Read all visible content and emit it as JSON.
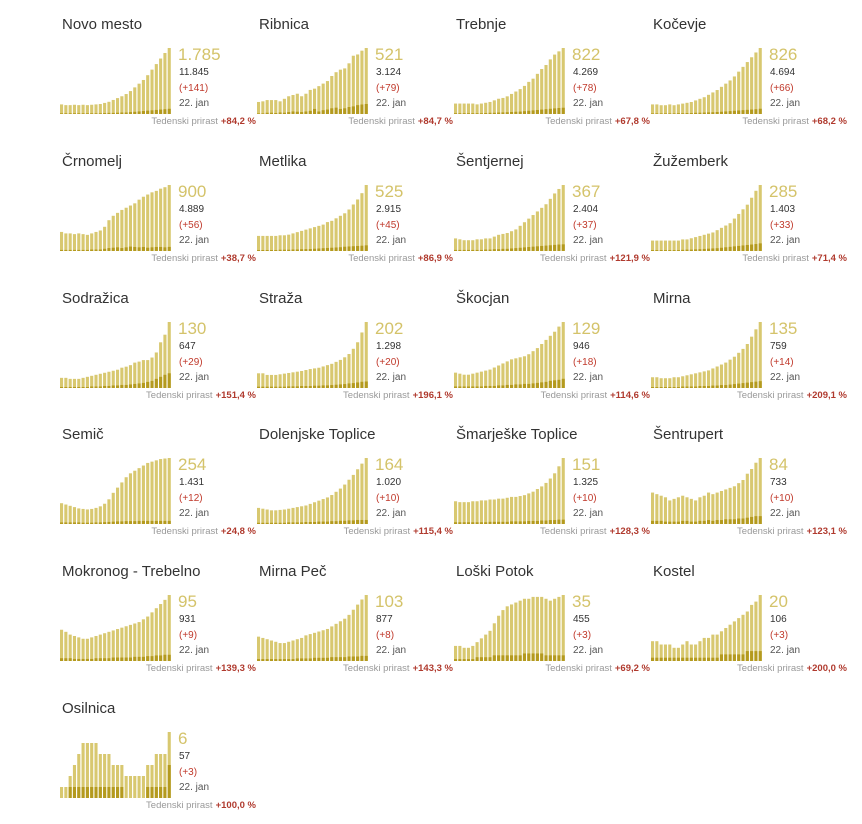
{
  "colors": {
    "bar_light": "#d8c870",
    "bar_dark": "#b49a1e",
    "big_number": "#d4c36a",
    "growth_value": "#b03a2e",
    "delta": "#c0392b"
  },
  "growth_label": "Tedenski prirast",
  "chart_data": [
    {
      "type": "bar",
      "title": "Novo mesto",
      "current": "1.785",
      "total": "11.845",
      "delta": "(+141)",
      "date": "22. jan",
      "growth": "+84,2 %",
      "values": [
        260,
        240,
        240,
        250,
        240,
        250,
        240,
        250,
        260,
        270,
        300,
        330,
        380,
        430,
        480,
        540,
        620,
        720,
        820,
        920,
        1050,
        1200,
        1350,
        1500,
        1650,
        1785
      ],
      "dark": [
        20,
        20,
        20,
        20,
        20,
        20,
        20,
        20,
        20,
        20,
        25,
        30,
        30,
        35,
        40,
        40,
        50,
        60,
        70,
        80,
        90,
        100,
        110,
        120,
        130,
        141
      ]
    },
    {
      "type": "bar",
      "title": "Ribnica",
      "current": "521",
      "total": "3.124",
      "delta": "(+79)",
      "date": "22. jan",
      "growth": "+84,7 %",
      "values": [
        95,
        100,
        110,
        110,
        110,
        100,
        120,
        140,
        150,
        160,
        140,
        160,
        190,
        200,
        220,
        240,
        260,
        300,
        330,
        350,
        360,
        400,
        460,
        470,
        500,
        521
      ],
      "dark": [
        5,
        5,
        10,
        10,
        8,
        12,
        10,
        15,
        20,
        18,
        15,
        20,
        25,
        40,
        20,
        30,
        35,
        45,
        50,
        40,
        45,
        55,
        60,
        70,
        75,
        79
      ]
    },
    {
      "type": "bar",
      "title": "Trebnje",
      "current": "822",
      "total": "4.269",
      "delta": "(+78)",
      "date": "22. jan",
      "growth": "+67,8 %",
      "values": [
        130,
        130,
        130,
        130,
        130,
        120,
        130,
        140,
        150,
        170,
        190,
        200,
        220,
        250,
        280,
        310,
        350,
        400,
        440,
        500,
        560,
        610,
        680,
        740,
        780,
        822
      ],
      "dark": [
        10,
        10,
        10,
        10,
        10,
        10,
        10,
        12,
        15,
        15,
        18,
        20,
        22,
        25,
        28,
        30,
        35,
        40,
        45,
        50,
        55,
        60,
        65,
        70,
        75,
        78
      ]
    },
    {
      "type": "bar",
      "title": "Kočevje",
      "current": "826",
      "total": "4.694",
      "delta": "(+66)",
      "date": "22. jan",
      "growth": "+68,2 %",
      "values": [
        120,
        120,
        110,
        110,
        120,
        110,
        120,
        130,
        140,
        150,
        170,
        190,
        210,
        240,
        270,
        300,
        340,
        380,
        420,
        470,
        530,
        590,
        650,
        710,
        770,
        826
      ],
      "dark": [
        8,
        8,
        8,
        8,
        8,
        8,
        10,
        10,
        12,
        12,
        15,
        16,
        18,
        20,
        22,
        25,
        28,
        32,
        36,
        40,
        44,
        48,
        52,
        56,
        60,
        66
      ]
    },
    {
      "type": "bar",
      "title": "Črnomelj",
      "current": "900",
      "total": "4.889",
      "delta": "(+56)",
      "date": "22. jan",
      "growth": "+38,7 %",
      "values": [
        260,
        240,
        240,
        230,
        240,
        230,
        220,
        240,
        260,
        280,
        330,
        420,
        480,
        520,
        560,
        590,
        620,
        650,
        700,
        740,
        770,
        800,
        820,
        850,
        870,
        900
      ],
      "dark": [
        15,
        15,
        15,
        15,
        15,
        15,
        15,
        20,
        20,
        20,
        30,
        40,
        45,
        50,
        40,
        50,
        60,
        55,
        50,
        55,
        45,
        50,
        55,
        55,
        50,
        56
      ]
    },
    {
      "type": "bar",
      "title": "Metlika",
      "current": "525",
      "total": "2.915",
      "delta": "(+45)",
      "date": "22. jan",
      "growth": "+86,9 %",
      "values": [
        120,
        120,
        120,
        120,
        120,
        125,
        125,
        130,
        140,
        150,
        160,
        170,
        180,
        190,
        200,
        210,
        230,
        240,
        260,
        280,
        300,
        330,
        370,
        410,
        460,
        525
      ],
      "dark": [
        8,
        8,
        8,
        8,
        8,
        10,
        10,
        10,
        12,
        12,
        14,
        15,
        16,
        18,
        20,
        22,
        24,
        26,
        28,
        30,
        34,
        36,
        38,
        40,
        42,
        45
      ]
    },
    {
      "type": "bar",
      "title": "Šentjernej",
      "current": "367",
      "total": "2.404",
      "delta": "(+37)",
      "date": "22. jan",
      "growth": "+121,9 %",
      "values": [
        70,
        65,
        60,
        60,
        60,
        65,
        65,
        70,
        70,
        80,
        90,
        95,
        100,
        110,
        120,
        140,
        160,
        180,
        200,
        220,
        240,
        260,
        290,
        320,
        345,
        367
      ],
      "dark": [
        6,
        6,
        6,
        6,
        6,
        6,
        6,
        8,
        8,
        10,
        10,
        12,
        12,
        14,
        16,
        18,
        20,
        22,
        24,
        26,
        28,
        30,
        32,
        34,
        36,
        37
      ]
    },
    {
      "type": "bar",
      "title": "Žužemberk",
      "current": "285",
      "total": "1.403",
      "delta": "(+33)",
      "date": "22. jan",
      "growth": "+71,4 %",
      "values": [
        45,
        45,
        45,
        45,
        45,
        45,
        45,
        50,
        50,
        55,
        60,
        65,
        70,
        75,
        80,
        90,
        100,
        110,
        120,
        140,
        160,
        180,
        200,
        230,
        260,
        285
      ],
      "dark": [
        4,
        4,
        4,
        4,
        4,
        4,
        4,
        5,
        6,
        6,
        7,
        8,
        9,
        10,
        11,
        12,
        14,
        16,
        18,
        20,
        22,
        24,
        26,
        28,
        30,
        33
      ]
    },
    {
      "type": "bar",
      "title": "Sodražica",
      "current": "130",
      "total": "647",
      "delta": "(+29)",
      "date": "22. jan",
      "growth": "+151,4 %",
      "values": [
        20,
        20,
        18,
        18,
        18,
        20,
        22,
        24,
        26,
        28,
        30,
        32,
        34,
        36,
        40,
        42,
        45,
        50,
        52,
        55,
        55,
        60,
        70,
        90,
        105,
        130
      ],
      "dark": [
        2,
        2,
        2,
        2,
        2,
        2,
        2,
        3,
        3,
        3,
        4,
        4,
        5,
        5,
        6,
        6,
        7,
        8,
        9,
        10,
        12,
        14,
        18,
        22,
        26,
        29
      ]
    },
    {
      "type": "bar",
      "title": "Straža",
      "current": "202",
      "total": "1.298",
      "delta": "(+20)",
      "date": "22. jan",
      "growth": "+196,1 %",
      "values": [
        45,
        45,
        40,
        40,
        40,
        42,
        44,
        46,
        48,
        50,
        52,
        55,
        58,
        60,
        62,
        66,
        70,
        74,
        80,
        86,
        94,
        104,
        120,
        140,
        170,
        202
      ],
      "dark": [
        4,
        4,
        4,
        4,
        4,
        4,
        4,
        5,
        5,
        5,
        6,
        6,
        6,
        7,
        7,
        8,
        8,
        9,
        10,
        11,
        12,
        14,
        15,
        17,
        19,
        20
      ]
    },
    {
      "type": "bar",
      "title": "Škocjan",
      "current": "129",
      "total": "946",
      "delta": "(+18)",
      "date": "22. jan",
      "growth": "+114,6 %",
      "values": [
        30,
        28,
        26,
        26,
        28,
        30,
        32,
        34,
        36,
        40,
        44,
        48,
        52,
        56,
        58,
        60,
        62,
        66,
        72,
        78,
        86,
        94,
        102,
        110,
        120,
        129
      ],
      "dark": [
        3,
        3,
        3,
        3,
        3,
        3,
        3,
        4,
        4,
        4,
        5,
        5,
        6,
        6,
        7,
        7,
        8,
        8,
        9,
        10,
        11,
        12,
        14,
        15,
        16,
        18
      ]
    },
    {
      "type": "bar",
      "title": "Mirna",
      "current": "135",
      "total": "759",
      "delta": "(+14)",
      "date": "22. jan",
      "growth": "+209,1 %",
      "values": [
        22,
        22,
        20,
        20,
        20,
        22,
        22,
        24,
        26,
        28,
        30,
        32,
        34,
        36,
        40,
        44,
        48,
        52,
        58,
        64,
        72,
        80,
        90,
        105,
        120,
        135
      ],
      "dark": [
        2,
        2,
        2,
        2,
        2,
        2,
        2,
        3,
        3,
        3,
        3,
        4,
        4,
        4,
        5,
        5,
        6,
        6,
        7,
        8,
        9,
        10,
        11,
        12,
        13,
        14
      ]
    },
    {
      "type": "bar",
      "title": "Semič",
      "current": "254",
      "total": "1.431",
      "delta": "(+12)",
      "date": "22. jan",
      "growth": "+24,8 %",
      "values": [
        80,
        75,
        70,
        65,
        60,
        58,
        56,
        58,
        62,
        68,
        78,
        95,
        120,
        140,
        160,
        180,
        195,
        205,
        215,
        225,
        235,
        240,
        245,
        250,
        252,
        254
      ],
      "dark": [
        6,
        6,
        6,
        6,
        6,
        5,
        5,
        5,
        6,
        6,
        7,
        8,
        9,
        10,
        10,
        11,
        11,
        11,
        12,
        12,
        12,
        12,
        12,
        12,
        12,
        12
      ]
    },
    {
      "type": "bar",
      "title": "Dolenjske Toplice",
      "current": "164",
      "total": "1.020",
      "delta": "(+10)",
      "date": "22. jan",
      "growth": "+115,4 %",
      "values": [
        40,
        38,
        36,
        34,
        34,
        35,
        36,
        38,
        40,
        42,
        44,
        46,
        50,
        54,
        58,
        62,
        66,
        72,
        80,
        88,
        98,
        110,
        122,
        136,
        150,
        164
      ],
      "dark": [
        3,
        3,
        3,
        3,
        3,
        3,
        3,
        4,
        4,
        4,
        4,
        5,
        5,
        5,
        6,
        6,
        6,
        7,
        7,
        8,
        8,
        9,
        9,
        10,
        10,
        10
      ]
    },
    {
      "type": "bar",
      "title": "Šmarješke Toplice",
      "current": "151",
      "total": "1.325",
      "delta": "(+10)",
      "date": "22. jan",
      "growth": "+128,3 %",
      "values": [
        52,
        50,
        50,
        50,
        52,
        52,
        54,
        54,
        56,
        56,
        58,
        58,
        60,
        62,
        62,
        64,
        66,
        70,
        74,
        80,
        86,
        94,
        104,
        116,
        132,
        151
      ],
      "dark": [
        4,
        4,
        4,
        4,
        4,
        4,
        4,
        4,
        5,
        5,
        5,
        5,
        5,
        6,
        6,
        6,
        6,
        7,
        7,
        7,
        8,
        8,
        9,
        9,
        10,
        10
      ]
    },
    {
      "type": "bar",
      "title": "Šentrupert",
      "current": "84",
      "total": "733",
      "delta": "(+10)",
      "date": "22. jan",
      "growth": "+123,1 %",
      "values": [
        40,
        38,
        36,
        34,
        30,
        32,
        34,
        36,
        34,
        32,
        30,
        34,
        36,
        40,
        38,
        40,
        42,
        44,
        46,
        48,
        52,
        56,
        64,
        70,
        78,
        84
      ],
      "dark": [
        4,
        4,
        4,
        3,
        3,
        3,
        3,
        4,
        4,
        3,
        3,
        4,
        4,
        5,
        4,
        5,
        5,
        6,
        6,
        6,
        7,
        7,
        8,
        9,
        10,
        10
      ]
    },
    {
      "type": "bar",
      "title": "Mokronog - Trebelno",
      "current": "95",
      "total": "931",
      "delta": "(+9)",
      "date": "22. jan",
      "growth": "+139,3 %",
      "values": [
        45,
        42,
        38,
        36,
        34,
        32,
        32,
        34,
        36,
        38,
        40,
        42,
        44,
        46,
        48,
        50,
        52,
        54,
        56,
        60,
        64,
        70,
        76,
        82,
        88,
        95
      ],
      "dark": [
        4,
        4,
        4,
        3,
        3,
        3,
        3,
        3,
        4,
        4,
        4,
        4,
        5,
        5,
        5,
        5,
        5,
        6,
        6,
        6,
        7,
        7,
        8,
        8,
        9,
        9
      ]
    },
    {
      "type": "bar",
      "title": "Mirna Peč",
      "current": "103",
      "total": "877",
      "delta": "(+8)",
      "date": "22. jan",
      "growth": "+143,3 %",
      "values": [
        38,
        36,
        34,
        32,
        30,
        28,
        28,
        30,
        32,
        34,
        36,
        40,
        42,
        44,
        46,
        48,
        50,
        54,
        58,
        62,
        66,
        72,
        80,
        88,
        96,
        103
      ],
      "dark": [
        3,
        3,
        3,
        3,
        3,
        3,
        3,
        3,
        3,
        4,
        4,
        4,
        4,
        5,
        5,
        5,
        5,
        6,
        6,
        6,
        6,
        7,
        7,
        7,
        8,
        8
      ]
    },
    {
      "type": "bar",
      "title": "Loški Potok",
      "current": "35",
      "total": "455",
      "delta": "(+3)",
      "date": "22. jan",
      "growth": "+69,2 %",
      "values": [
        8,
        8,
        7,
        7,
        8,
        10,
        12,
        14,
        16,
        20,
        24,
        27,
        29,
        30,
        31,
        32,
        33,
        33,
        34,
        34,
        34,
        33,
        32,
        33,
        34,
        35
      ],
      "dark": [
        1,
        1,
        1,
        1,
        1,
        2,
        2,
        2,
        2,
        3,
        3,
        3,
        3,
        3,
        3,
        3,
        4,
        4,
        4,
        4,
        4,
        3,
        3,
        3,
        3,
        3
      ]
    },
    {
      "type": "bar",
      "title": "Kostel",
      "current": "20",
      "total": "106",
      "delta": "(+3)",
      "date": "22. jan",
      "growth": "+200,0 %",
      "values": [
        6,
        6,
        5,
        5,
        5,
        4,
        4,
        5,
        6,
        5,
        5,
        6,
        7,
        7,
        8,
        8,
        9,
        10,
        11,
        12,
        13,
        14,
        15,
        17,
        18,
        20
      ],
      "dark": [
        1,
        1,
        1,
        1,
        1,
        1,
        1,
        1,
        1,
        1,
        1,
        1,
        1,
        1,
        1,
        1,
        2,
        2,
        2,
        2,
        2,
        2,
        3,
        3,
        3,
        3
      ]
    },
    {
      "type": "bar",
      "title": "Osilnica",
      "current": "6",
      "total": "57",
      "delta": "(+3)",
      "date": "22. jan",
      "growth": "+100,0 %",
      "values": [
        1,
        1,
        2,
        3,
        4,
        5,
        5,
        5,
        5,
        4,
        4,
        4,
        3,
        3,
        3,
        2,
        2,
        2,
        2,
        2,
        3,
        3,
        4,
        4,
        4,
        6
      ],
      "dark": [
        0,
        0,
        1,
        1,
        1,
        1,
        1,
        1,
        1,
        1,
        1,
        1,
        1,
        1,
        1,
        0,
        0,
        0,
        0,
        0,
        1,
        1,
        1,
        1,
        1,
        3
      ]
    }
  ]
}
